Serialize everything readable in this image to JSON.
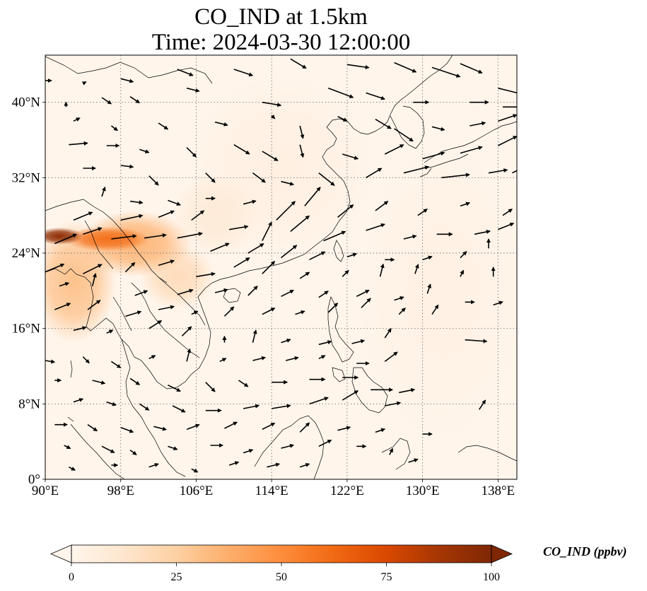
{
  "title": "CO_IND at 1.5km",
  "subtitle": "Time: 2024-03-30 12:00:00",
  "map": {
    "projection": "PlateCarree",
    "lon_range": [
      90,
      140
    ],
    "lat_range": [
      0,
      45
    ],
    "lon_ticks": [
      {
        "value": 90,
        "label": "90°E"
      },
      {
        "value": 98,
        "label": "98°E"
      },
      {
        "value": 106,
        "label": "106°E"
      },
      {
        "value": 114,
        "label": "114°E"
      },
      {
        "value": 122,
        "label": "122°E"
      },
      {
        "value": 130,
        "label": "130°E"
      },
      {
        "value": 138,
        "label": "138°E"
      }
    ],
    "lat_ticks": [
      {
        "value": 0,
        "label": "0°"
      },
      {
        "value": 8,
        "label": "8°N"
      },
      {
        "value": 16,
        "label": "16°N"
      },
      {
        "value": 24,
        "label": "24°N"
      },
      {
        "value": 32,
        "label": "32°N"
      },
      {
        "value": 40,
        "label": "40°N"
      }
    ],
    "gridlines": "dotted",
    "plumes": [
      {
        "lon": 91.5,
        "lat": 25.8,
        "rx_deg": 2.5,
        "ry_deg": 0.9,
        "level": 95
      },
      {
        "lon": 96.5,
        "lat": 25.5,
        "rx_deg": 4.5,
        "ry_deg": 1.3,
        "level": 60
      },
      {
        "lon": 99.5,
        "lat": 25.0,
        "rx_deg": 6.0,
        "ry_deg": 3.5,
        "level": 35
      },
      {
        "lon": 93.0,
        "lat": 21.0,
        "rx_deg": 4.5,
        "ry_deg": 6.5,
        "level": 30
      },
      {
        "lon": 104.0,
        "lat": 21.5,
        "rx_deg": 4.0,
        "ry_deg": 3.5,
        "level": 18
      },
      {
        "lon": 108.0,
        "lat": 28.0,
        "rx_deg": 4.5,
        "ry_deg": 4.5,
        "level": 8
      },
      {
        "lon": 115.0,
        "lat": 33.0,
        "rx_deg": 10.0,
        "ry_deg": 10.0,
        "level": 4
      },
      {
        "lon": 132.0,
        "lat": 20.0,
        "rx_deg": 9.0,
        "ry_deg": 16.0,
        "level": 3
      }
    ],
    "wind_note_units": "arrows: [lon, lat, u, v]",
    "wind": [
      [
        90,
        42.3,
        0.4,
        0
      ],
      [
        94,
        42,
        0.2,
        0.1
      ],
      [
        98,
        42.5,
        0.8,
        -0.2
      ],
      [
        104,
        43.5,
        1.0,
        -0.4
      ],
      [
        110,
        43.5,
        1.2,
        -0.4
      ],
      [
        116,
        44.6,
        1.0,
        -0.6
      ],
      [
        122,
        44,
        1.4,
        -0.2
      ],
      [
        127,
        44.2,
        1.4,
        -0.6
      ],
      [
        131,
        43.7,
        1.8,
        -0.6
      ],
      [
        134,
        44.1,
        1.4,
        -0.6
      ],
      [
        138,
        41.5,
        1.6,
        -0.4
      ],
      [
        92.2,
        39.5,
        0,
        0.3
      ],
      [
        96,
        40.5,
        0.6,
        -0.4
      ],
      [
        99,
        40.6,
        0.6,
        -0.4
      ],
      [
        105,
        41.5,
        0.8,
        -0.2
      ],
      [
        113,
        40,
        1.2,
        -0.2
      ],
      [
        120,
        41.5,
        1.6,
        -0.6
      ],
      [
        124,
        41,
        1.2,
        -0.4
      ],
      [
        129,
        40,
        1.0,
        0
      ],
      [
        135,
        40,
        1.2,
        0
      ],
      [
        138.5,
        39.5,
        1.2,
        0
      ],
      [
        93,
        38,
        0.4,
        0.2
      ],
      [
        97,
        37.5,
        0.4,
        -0.3
      ],
      [
        102,
        37.8,
        0.6,
        -0.4
      ],
      [
        108,
        37.9,
        0.8,
        -0.2
      ],
      [
        114,
        38.6,
        0.2,
        -0.2
      ],
      [
        117,
        37.5,
        0.2,
        -0.8
      ],
      [
        121,
        38.5,
        0.6,
        -0.3
      ],
      [
        125,
        38.2,
        1.0,
        -0.6
      ],
      [
        127,
        37.2,
        1.2,
        -0.8
      ],
      [
        131,
        37.4,
        0.8,
        -0.2
      ],
      [
        135,
        37.5,
        1.0,
        0.2
      ],
      [
        138,
        38,
        1.2,
        0.4
      ],
      [
        92.5,
        35.5,
        1.2,
        0.1
      ],
      [
        96.5,
        35.4,
        0.8,
        0
      ],
      [
        100,
        35,
        0.6,
        -0.2
      ],
      [
        105,
        35.2,
        0.6,
        -0.6
      ],
      [
        110,
        35.5,
        1.0,
        -0.6
      ],
      [
        113,
        34.8,
        1.0,
        -0.6
      ],
      [
        117,
        35.5,
        0.2,
        -0.8
      ],
      [
        121.5,
        34.5,
        1.0,
        -0.3
      ],
      [
        126,
        34.5,
        1.2,
        0.6
      ],
      [
        130,
        34,
        1.4,
        0.4
      ],
      [
        134,
        34.6,
        1.4,
        0.4
      ],
      [
        138,
        35.4,
        1.2,
        0.6
      ],
      [
        94,
        33,
        0.8,
        0
      ],
      [
        98,
        33.3,
        0.8,
        -0.1
      ],
      [
        101,
        32.2,
        0.6,
        -0.6
      ],
      [
        107,
        32.5,
        0.6,
        -0.6
      ],
      [
        112,
        32.5,
        0.8,
        -0.6
      ],
      [
        115,
        31.6,
        0.8,
        -0.2
      ],
      [
        119,
        32.5,
        1.0,
        -0.8
      ],
      [
        124,
        32,
        1.0,
        0.6
      ],
      [
        128,
        32.5,
        1.6,
        0.4
      ],
      [
        132,
        32,
        1.8,
        0.2
      ],
      [
        137,
        32.5,
        1.2,
        0.2
      ],
      [
        139.5,
        32.5,
        0.8,
        0.4
      ],
      [
        96,
        30,
        0.2,
        0.6
      ],
      [
        99,
        29.5,
        0.8,
        -0.1
      ],
      [
        103,
        29.6,
        0.8,
        -0.3
      ],
      [
        107,
        29.8,
        0.6,
        0
      ],
      [
        111,
        29.2,
        0.8,
        0.2
      ],
      [
        114.5,
        27.5,
        1.2,
        1.2
      ],
      [
        117.5,
        29,
        1.0,
        1.2
      ],
      [
        121,
        27.8,
        1.0,
        0.8
      ],
      [
        125,
        28.5,
        0.8,
        0.6
      ],
      [
        129.5,
        28,
        0.6,
        0.4
      ],
      [
        134,
        29,
        0.6,
        0.2
      ],
      [
        138.5,
        28,
        0.6,
        0.4
      ],
      [
        93,
        27.5,
        1.2,
        0.5
      ],
      [
        98,
        27.5,
        1.4,
        0.3
      ],
      [
        102,
        27.8,
        1.0,
        0.4
      ],
      [
        105.5,
        27.5,
        0.8,
        0.6
      ],
      [
        109.5,
        26.5,
        1.2,
        0.2
      ],
      [
        113,
        25.3,
        0.6,
        1.2
      ],
      [
        116,
        26.3,
        1.2,
        1.0
      ],
      [
        119.5,
        25.3,
        1.4,
        0.6
      ],
      [
        124,
        26.4,
        1.2,
        0.4
      ],
      [
        128,
        25.5,
        0.8,
        0.2
      ],
      [
        131.5,
        26,
        1.0,
        0
      ],
      [
        135.5,
        26,
        1.0,
        0.2
      ],
      [
        138,
        26.5,
        1.0,
        0.4
      ],
      [
        91,
        25,
        1.4,
        0.6
      ],
      [
        94,
        26,
        1.2,
        0.4
      ],
      [
        97,
        25.5,
        1.6,
        0.2
      ],
      [
        100.5,
        25.6,
        1.4,
        0.2
      ],
      [
        104,
        25.6,
        1.6,
        0.3
      ],
      [
        107.5,
        24.2,
        1.2,
        0.5
      ],
      [
        111.5,
        24,
        1.0,
        0.6
      ],
      [
        115,
        23.5,
        1.0,
        0.8
      ],
      [
        118,
        23.3,
        1.0,
        0.5
      ],
      [
        122,
        23.6,
        0.6,
        0.2
      ],
      [
        126,
        23.3,
        0.6,
        0
      ],
      [
        130,
        23.3,
        0.6,
        0.2
      ],
      [
        134,
        23.5,
        0.4,
        0.4
      ],
      [
        137,
        24.5,
        0,
        0.6
      ],
      [
        90,
        22,
        1.2,
        0.5
      ],
      [
        94,
        21.8,
        1.2,
        0.6
      ],
      [
        98.5,
        22,
        0.6,
        0.6
      ],
      [
        102,
        22.7,
        1.0,
        0.3
      ],
      [
        106,
        21.5,
        1.2,
        0.2
      ],
      [
        110,
        22.5,
        1.0,
        0.6
      ],
      [
        113,
        21.8,
        0.8,
        0.8
      ],
      [
        117,
        21.3,
        0.6,
        0.4
      ],
      [
        121.5,
        21.5,
        0.4,
        0.4
      ],
      [
        125.5,
        21.5,
        0.2,
        0.8
      ],
      [
        129.2,
        21.8,
        0.2,
        0.6
      ],
      [
        134,
        21.5,
        0.2,
        0.4
      ],
      [
        137.5,
        21.5,
        0,
        0.6
      ],
      [
        91.5,
        20.5,
        0.6,
        0.2
      ],
      [
        95,
        20.5,
        0.2,
        0.8
      ],
      [
        99.5,
        19.5,
        0.8,
        0.3
      ],
      [
        104,
        19.6,
        1.0,
        0.3
      ],
      [
        108,
        19.8,
        0.8,
        0.2
      ],
      [
        111.5,
        19.5,
        0.6,
        0.6
      ],
      [
        115,
        19.4,
        0.8,
        0.4
      ],
      [
        119,
        19.3,
        0.6,
        0.4
      ],
      [
        123,
        19.4,
        0.8,
        0.4
      ],
      [
        127,
        19,
        0.6,
        0.2
      ],
      [
        130.5,
        19.7,
        0.2,
        0.6
      ],
      [
        134.5,
        18.8,
        0.6,
        0
      ],
      [
        137.5,
        18.5,
        0.6,
        0.2
      ],
      [
        91,
        18,
        1.0,
        0.4
      ],
      [
        94.5,
        18,
        0.8,
        0.6
      ],
      [
        98.5,
        17.3,
        1.0,
        0.3
      ],
      [
        102,
        18,
        1.0,
        0.2
      ],
      [
        105.5,
        17.5,
        0.4,
        0.2
      ],
      [
        109,
        17.3,
        0.6,
        0.6
      ],
      [
        113,
        17.5,
        0.8,
        0.4
      ],
      [
        116.5,
        17.5,
        0.6,
        0.2
      ],
      [
        120,
        17.7,
        0.6,
        0.6
      ],
      [
        123.5,
        18.2,
        0.6,
        0.6
      ],
      [
        127.5,
        17.5,
        0.4,
        0.4
      ],
      [
        131,
        17.5,
        0.4,
        0.6
      ],
      [
        93,
        15.8,
        0.8,
        0.2
      ],
      [
        96.5,
        15.5,
        0.4,
        0.2
      ],
      [
        101,
        16,
        0.8,
        0.5
      ],
      [
        104.5,
        15.2,
        0.6,
        0.6
      ],
      [
        109,
        14.5,
        0,
        0.4
      ],
      [
        112,
        14.5,
        0.2,
        0.8
      ],
      [
        115,
        14.5,
        0.6,
        0.2
      ],
      [
        119,
        14.3,
        0.8,
        0.2
      ],
      [
        122.5,
        14.4,
        0.8,
        0.2
      ],
      [
        126,
        15,
        0.4,
        0.6
      ],
      [
        134.5,
        14.8,
        1.4,
        -0.1
      ],
      [
        90,
        12.6,
        0.6,
        -0.1
      ],
      [
        94,
        13,
        0.4,
        -0.4
      ],
      [
        97,
        12.5,
        0.6,
        -0.4
      ],
      [
        101,
        12.8,
        0.4,
        0.2
      ],
      [
        105,
        12.5,
        0.2,
        0.8
      ],
      [
        108.5,
        12.5,
        0.4,
        0.2
      ],
      [
        112,
        12.6,
        0.8,
        0.2
      ],
      [
        115.5,
        12.6,
        0.8,
        0.2
      ],
      [
        119,
        12.8,
        0.4,
        0.2
      ],
      [
        123,
        12.3,
        0.8,
        0
      ],
      [
        126,
        12.5,
        0.8,
        0.6
      ],
      [
        91,
        10.5,
        0.4,
        0
      ],
      [
        95,
        10.5,
        0.8,
        -0.2
      ],
      [
        99,
        10.7,
        0.6,
        -0.4
      ],
      [
        103,
        10,
        0.8,
        -0.4
      ],
      [
        107,
        10.3,
        0.6,
        -0.6
      ],
      [
        110.5,
        10.5,
        0.6,
        -0.4
      ],
      [
        114,
        10.3,
        1.0,
        0
      ],
      [
        118,
        10.6,
        1.0,
        0
      ],
      [
        121.5,
        10.8,
        1.0,
        0
      ],
      [
        124.5,
        9.5,
        1.4,
        0
      ],
      [
        127.5,
        9.2,
        1.0,
        0.2
      ],
      [
        93,
        8.2,
        0.6,
        0.2
      ],
      [
        96.5,
        8.2,
        0.6,
        -0.2
      ],
      [
        100,
        8,
        0.6,
        -0.4
      ],
      [
        103.5,
        7.8,
        0.8,
        -0.4
      ],
      [
        107,
        7.3,
        1.0,
        0
      ],
      [
        111,
        7.5,
        1.0,
        0.2
      ],
      [
        114,
        7.5,
        1.2,
        0.2
      ],
      [
        118,
        8,
        1.2,
        0.4
      ],
      [
        121.5,
        8.4,
        1.0,
        0.6
      ],
      [
        126,
        7.8,
        1.0,
        0.2
      ],
      [
        136,
        7.4,
        0.4,
        0.6
      ],
      [
        91,
        5.8,
        0.8,
        0
      ],
      [
        94.5,
        5.8,
        0.6,
        -0.4
      ],
      [
        98,
        5.5,
        0.8,
        -0.3
      ],
      [
        101.5,
        5.6,
        0.8,
        -0.2
      ],
      [
        105,
        5.3,
        0.8,
        0.3
      ],
      [
        109,
        5.4,
        0.8,
        0.4
      ],
      [
        113,
        5.3,
        0.8,
        0.4
      ],
      [
        117,
        5,
        0.6,
        0.6
      ],
      [
        121,
        5.2,
        0.8,
        0.2
      ],
      [
        125,
        5,
        0.6,
        0.2
      ],
      [
        130,
        4.8,
        0.6,
        0
      ],
      [
        92,
        3.6,
        0.4,
        -0.2
      ],
      [
        96,
        3.5,
        0.8,
        -0.4
      ],
      [
        99,
        3.1,
        0.4,
        -0.3
      ],
      [
        103,
        3.5,
        0.6,
        -0.2
      ],
      [
        107.5,
        3.6,
        0.8,
        0
      ],
      [
        111,
        2.8,
        0.6,
        0.2
      ],
      [
        115,
        3.3,
        0.8,
        0.2
      ],
      [
        119,
        3.5,
        0.8,
        0.4
      ],
      [
        123,
        3.5,
        0.6,
        0
      ],
      [
        126.5,
        2.6,
        0.2,
        0.4
      ],
      [
        128.5,
        1.8,
        0.6,
        0.2
      ],
      [
        92.5,
        1.3,
        0.4,
        -0.2
      ],
      [
        97,
        1.5,
        0.4,
        0
      ],
      [
        101,
        1.3,
        0.6,
        0.2
      ],
      [
        105.5,
        1.1,
        0.4,
        -0.2
      ],
      [
        109.5,
        1.5,
        0.6,
        0.2
      ],
      [
        113.5,
        1.3,
        0.8,
        0.2
      ],
      [
        117,
        1.3,
        0.6,
        0.2
      ]
    ]
  },
  "colorbar": {
    "label": "CO_IND (ppbv)",
    "vmin": 0,
    "vmax": 100,
    "extend": "both",
    "cmap": [
      "#fff5eb",
      "#fee6ce",
      "#fdd0a2",
      "#fdae6b",
      "#fd8d3c",
      "#f16913",
      "#d94801",
      "#a63603",
      "#7f2704"
    ],
    "ticks": [
      "0",
      "25",
      "50",
      "75",
      "100"
    ]
  }
}
